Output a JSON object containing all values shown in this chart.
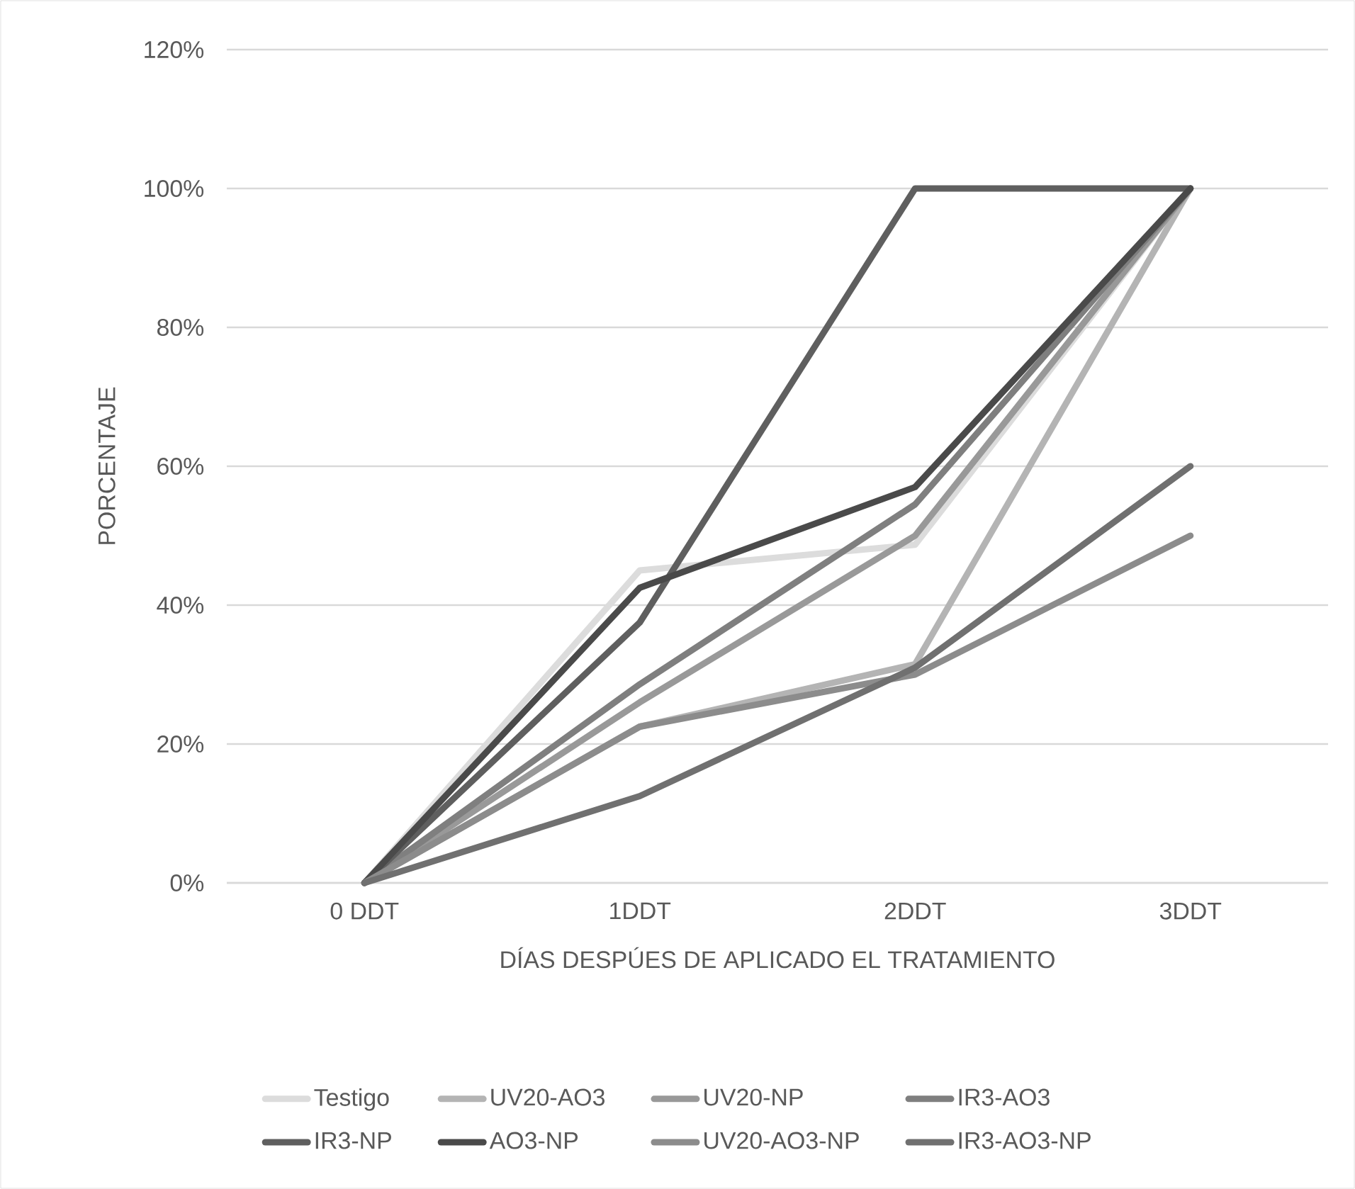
{
  "chart_data": {
    "type": "line",
    "categories": [
      "0 DDT",
      "1DDT",
      "2DDT",
      "3DDT"
    ],
    "xlabel": "DÍAS DESPÚES DE APLICADO EL TRATAMIENTO",
    "ylabel": "PORCENTAJE",
    "ylim": [
      0,
      120
    ],
    "yticks": [
      {
        "value": 0,
        "label": "0%"
      },
      {
        "value": 20,
        "label": "20%"
      },
      {
        "value": 40,
        "label": "40%"
      },
      {
        "value": 60,
        "label": "60%"
      },
      {
        "value": 80,
        "label": "80%"
      },
      {
        "value": 100,
        "label": "100%"
      },
      {
        "value": 120,
        "label": "120%"
      }
    ],
    "grid": "y",
    "legend": "bottom",
    "marker": "none",
    "line_style": "solid",
    "series": [
      {
        "name": "Testigo",
        "color": "#dcdcdc",
        "values": [
          0,
          45,
          48.7,
          100
        ]
      },
      {
        "name": "UV20-AO3",
        "color": "#b4b4b4",
        "values": [
          0,
          22.5,
          31.5,
          100
        ]
      },
      {
        "name": "UV20-NP",
        "color": "#999999",
        "values": [
          0,
          26,
          50,
          100
        ]
      },
      {
        "name": "IR3-AO3",
        "color": "#7f7f7f",
        "values": [
          0,
          28.6,
          54.5,
          100
        ]
      },
      {
        "name": "IR3-NP",
        "color": "#5f5f5f",
        "values": [
          0,
          37.5,
          100,
          100
        ]
      },
      {
        "name": "AO3-NP",
        "color": "#4a4a4a",
        "values": [
          0,
          42.5,
          57,
          100
        ]
      },
      {
        "name": "UV20-AO3-NP",
        "color": "#8c8c8c",
        "values": [
          0,
          22.5,
          30,
          50
        ]
      },
      {
        "name": "IR3-AO3-NP",
        "color": "#707070",
        "values": [
          0,
          12.5,
          31,
          60
        ]
      }
    ]
  }
}
